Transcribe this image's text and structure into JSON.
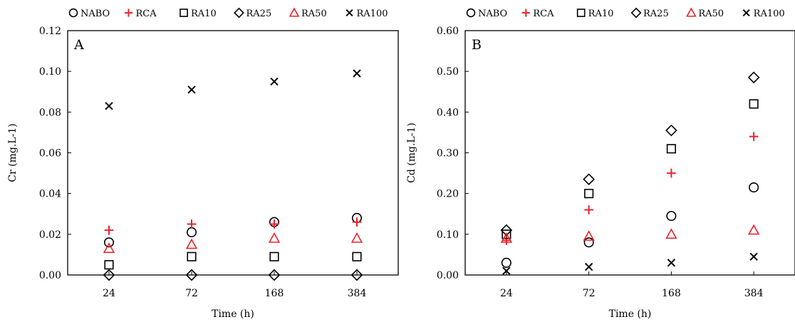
{
  "chart_data": [
    {
      "type": "scatter",
      "panel_label": "A",
      "categories": [
        "24",
        "72",
        "168",
        "384"
      ],
      "xlabel": "Time (h)",
      "ylabel": "Cr (mg.L-1)",
      "ylim": [
        0,
        0.12
      ],
      "yticks": [
        "0.00",
        "0.02",
        "0.04",
        "0.06",
        "0.08",
        "0.10",
        "0.12"
      ],
      "grid": false,
      "legend_position": "top",
      "series": [
        {
          "name": "NABO",
          "marker": "circle",
          "color": "#000000",
          "values": [
            0.016,
            0.021,
            0.026,
            0.028
          ]
        },
        {
          "name": "RCA",
          "marker": "plus",
          "color": "#e8242b",
          "values": [
            0.022,
            0.025,
            0.025,
            0.026
          ]
        },
        {
          "name": "RA10",
          "marker": "square",
          "color": "#000000",
          "values": [
            0.005,
            0.009,
            0.009,
            0.009
          ]
        },
        {
          "name": "RA25",
          "marker": "diamond",
          "color": "#000000",
          "values": [
            0.0,
            0.0,
            0.0,
            0.0
          ]
        },
        {
          "name": "RA50",
          "marker": "triangle",
          "color": "#e8242b",
          "values": [
            0.013,
            0.015,
            0.018,
            0.018
          ]
        },
        {
          "name": "RA100",
          "marker": "cross",
          "color": "#000000",
          "values": [
            0.083,
            0.091,
            0.095,
            0.099
          ]
        }
      ]
    },
    {
      "type": "scatter",
      "panel_label": "B",
      "categories": [
        "24",
        "72",
        "168",
        "384"
      ],
      "xlabel": "Time (h)",
      "ylabel": "Cd (mg.L-1)",
      "ylim": [
        0,
        0.6
      ],
      "yticks": [
        "0.00",
        "0.10",
        "0.20",
        "0.30",
        "0.40",
        "0.50",
        "0.60"
      ],
      "grid": false,
      "legend_position": "top",
      "series": [
        {
          "name": "NABO",
          "marker": "circle",
          "color": "#000000",
          "values": [
            0.03,
            0.08,
            0.145,
            0.215
          ]
        },
        {
          "name": "RCA",
          "marker": "plus",
          "color": "#e8242b",
          "values": [
            0.085,
            0.16,
            0.25,
            0.34
          ]
        },
        {
          "name": "RA10",
          "marker": "square",
          "color": "#000000",
          "values": [
            0.1,
            0.2,
            0.31,
            0.42
          ]
        },
        {
          "name": "RA25",
          "marker": "diamond",
          "color": "#000000",
          "values": [
            0.11,
            0.235,
            0.355,
            0.485
          ]
        },
        {
          "name": "RA50",
          "marker": "triangle",
          "color": "#e8242b",
          "values": [
            0.09,
            0.095,
            0.1,
            0.11
          ]
        },
        {
          "name": "RA100",
          "marker": "cross",
          "color": "#000000",
          "values": [
            0.01,
            0.02,
            0.03,
            0.045
          ]
        }
      ]
    }
  ]
}
